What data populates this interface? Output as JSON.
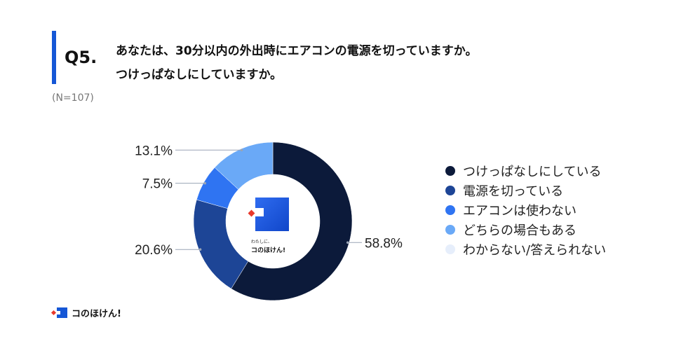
{
  "question": {
    "number": "Q5.",
    "line1": "あなたは、30分以内の外出時にエアコンの電源を切っていますか。",
    "line2": "つけっぱなしにしていますか。"
  },
  "sample": "(N=107)",
  "colors": {
    "accent": "#1557d6",
    "logo_red": "#e8392c"
  },
  "logo": {
    "tagline": "わたしに、",
    "name": "コのほけん!",
    "footer_name": "コのほけん!",
    "icon": "konohoken-logo-icon"
  },
  "chart_data": {
    "type": "pie",
    "title": "",
    "categories": [
      "つけっぱなしにしている",
      "電源を切っている",
      "エアコンは使わない",
      "どちらの場合もある",
      "わからない/答えられない"
    ],
    "values": [
      58.8,
      20.6,
      7.5,
      13.1,
      0
    ],
    "labels": [
      "58.8%",
      "20.6%",
      "7.5%",
      "13.1%",
      ""
    ],
    "colors": [
      "#0c1a3a",
      "#1d4596",
      "#2f74f2",
      "#6aa9f7",
      "#e6eefb"
    ],
    "donut": true,
    "legend_position": "right"
  }
}
